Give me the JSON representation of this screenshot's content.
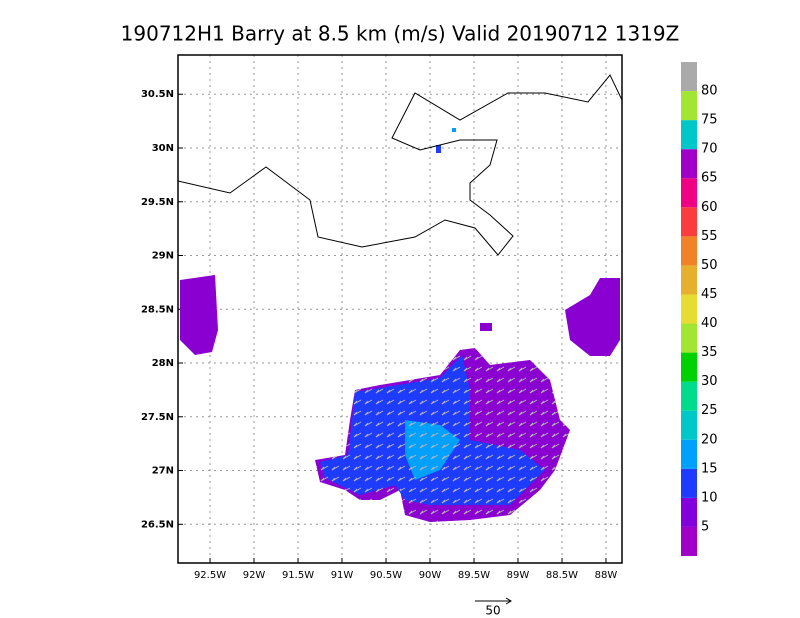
{
  "title": "190712H1  Barry at 8.5 km (m/s) Valid 20190712  1319Z",
  "map": {
    "lonlim": [
      -92.864,
      -87.818
    ],
    "latlim": [
      26.14,
      30.865
    ],
    "lon_ticks": [
      {
        "value": -92.5,
        "label": "92.5W"
      },
      {
        "value": -92,
        "label": "92W"
      },
      {
        "value": -91.5,
        "label": "91.5W"
      },
      {
        "value": -91,
        "label": "91W"
      },
      {
        "value": -90.5,
        "label": "90.5W"
      },
      {
        "value": -90,
        "label": "90W"
      },
      {
        "value": -89.5,
        "label": "89.5W"
      },
      {
        "value": -89,
        "label": "89W"
      },
      {
        "value": -88.5,
        "label": "88.5W"
      },
      {
        "value": -88,
        "label": "88W"
      }
    ],
    "lat_ticks": [
      {
        "value": 26.5,
        "label": "26.5N"
      },
      {
        "value": 27,
        "label": "27N"
      },
      {
        "value": 27.5,
        "label": "27.5N"
      },
      {
        "value": 28,
        "label": "28N"
      },
      {
        "value": 28.5,
        "label": "28.5N"
      },
      {
        "value": 29,
        "label": "29N"
      },
      {
        "value": 29.5,
        "label": "29.5N"
      },
      {
        "value": 30,
        "label": "30N"
      },
      {
        "value": 30.5,
        "label": "30.5N"
      }
    ]
  },
  "colorbar": {
    "range": [
      0,
      85
    ],
    "levels": [
      5,
      10,
      15,
      20,
      25,
      30,
      35,
      40,
      45,
      50,
      55,
      60,
      65,
      70,
      75,
      80
    ],
    "colors": [
      "#a000c8",
      "#8200dc",
      "#1e3cff",
      "#00a0ff",
      "#00c8c8",
      "#00dc8c",
      "#00d200",
      "#a0e632",
      "#e6dc32",
      "#e6af2d",
      "#f08228",
      "#fa3c3c",
      "#f00082",
      "#a000c8",
      "#00c8c8",
      "#a0e632",
      "#aaaaaa"
    ]
  },
  "reference_vector": 50
}
